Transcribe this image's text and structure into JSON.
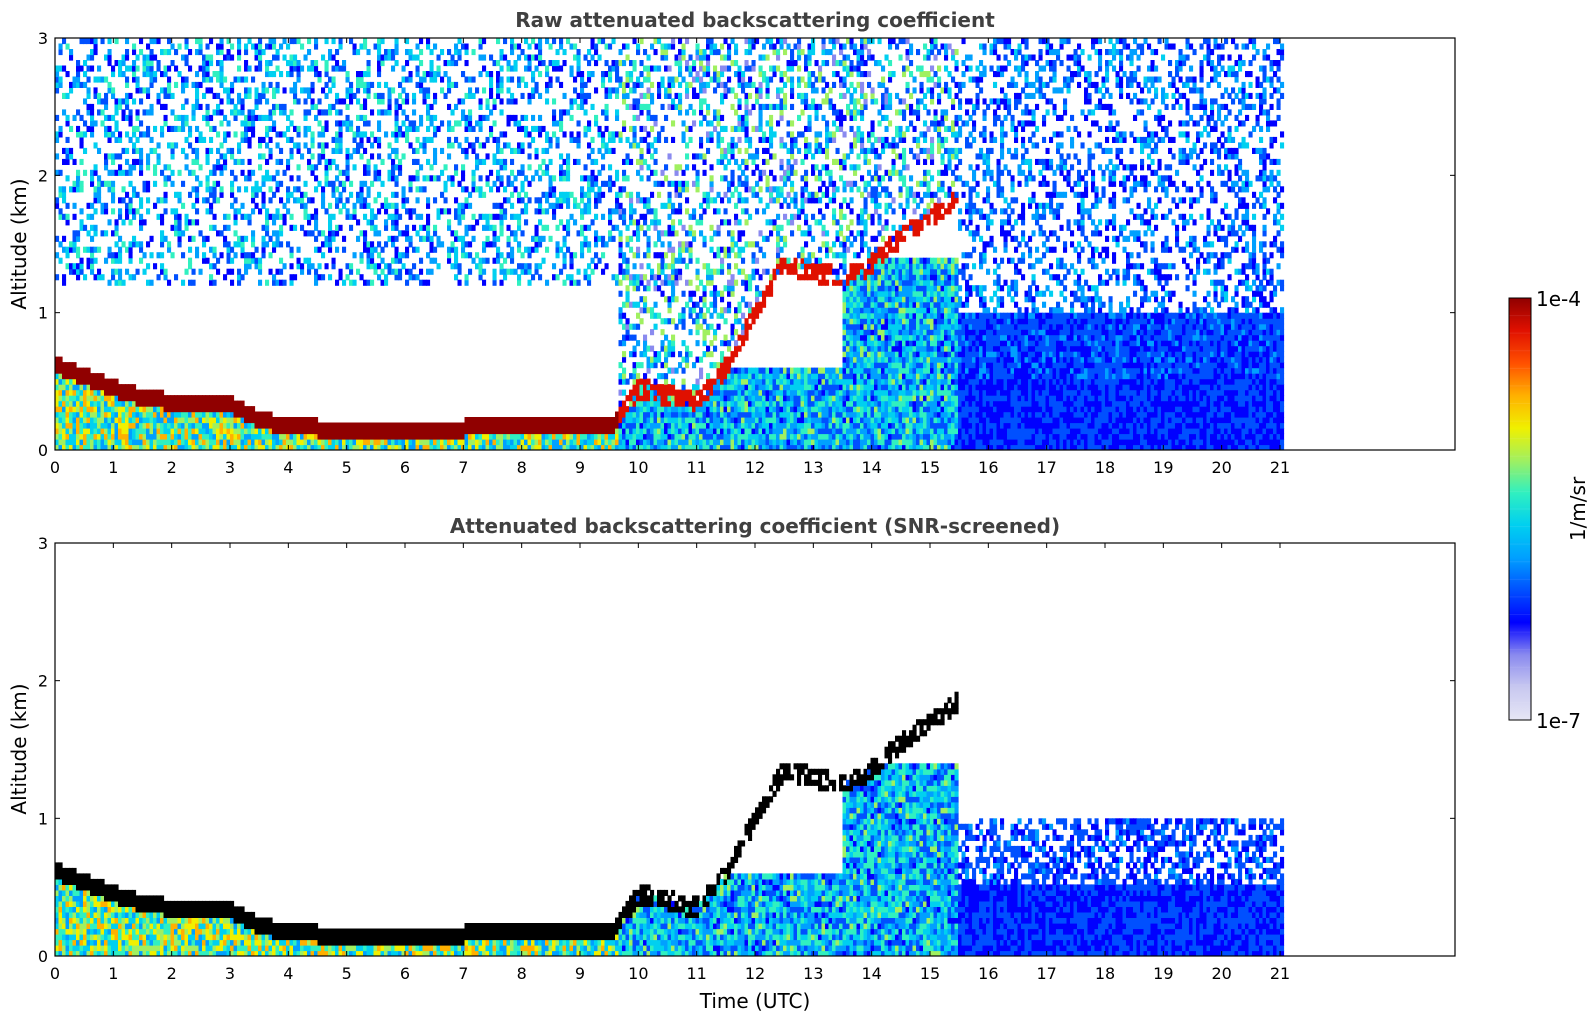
{
  "figure": {
    "colorbar": {
      "max_label": "1e-4",
      "min_label": "1e-7",
      "unit_label": "1/m/sr",
      "colormap": [
        "#e6e6f5",
        "#c8c8f0",
        "#8a8aef",
        "#0000ff",
        "#0050ff",
        "#00a0ff",
        "#00d0f0",
        "#30f0c0",
        "#a0f060",
        "#f0f000",
        "#ffb000",
        "#ff5000",
        "#e01000",
        "#900000"
      ]
    }
  },
  "chart_data": [
    {
      "type": "heatmap",
      "title": "Raw attenuated backscattering coefficient",
      "xlabel": "",
      "ylabel": "Altitude (km)",
      "xlim": [
        0,
        24
      ],
      "ylim": [
        0,
        3
      ],
      "data_extent_x": [
        0,
        21
      ],
      "x_ticks": [
        0,
        1,
        2,
        3,
        4,
        5,
        6,
        7,
        8,
        9,
        10,
        11,
        12,
        13,
        14,
        15,
        16,
        17,
        18,
        19,
        20,
        21
      ],
      "y_ticks": [
        0,
        1,
        2,
        3
      ],
      "boundary_layer_top_km": {
        "t": [
          0,
          1,
          1.5,
          2,
          3,
          3.5,
          4,
          5,
          6,
          7,
          8,
          9,
          9.6,
          10,
          10.5,
          11,
          11.5,
          12,
          12.5,
          13,
          13.5,
          14,
          14.5,
          15,
          15.5
        ],
        "z": [
          0.62,
          0.45,
          0.38,
          0.35,
          0.33,
          0.22,
          0.17,
          0.15,
          0.14,
          0.16,
          0.2,
          0.18,
          0.2,
          0.45,
          0.4,
          0.35,
          0.6,
          1.0,
          1.35,
          1.3,
          1.25,
          1.35,
          1.55,
          1.7,
          1.85
        ]
      }
    },
    {
      "type": "heatmap",
      "title": "Attenuated backscattering coefficient (SNR-screened)",
      "xlabel": "Time (UTC)",
      "ylabel": "Altitude (km)",
      "xlim": [
        0,
        24
      ],
      "ylim": [
        0,
        3
      ],
      "data_extent_x": [
        0,
        21
      ],
      "x_ticks": [
        0,
        1,
        2,
        3,
        4,
        5,
        6,
        7,
        8,
        9,
        10,
        11,
        12,
        13,
        14,
        15,
        16,
        17,
        18,
        19,
        20,
        21
      ],
      "y_ticks": [
        0,
        1,
        2,
        3
      ]
    }
  ]
}
